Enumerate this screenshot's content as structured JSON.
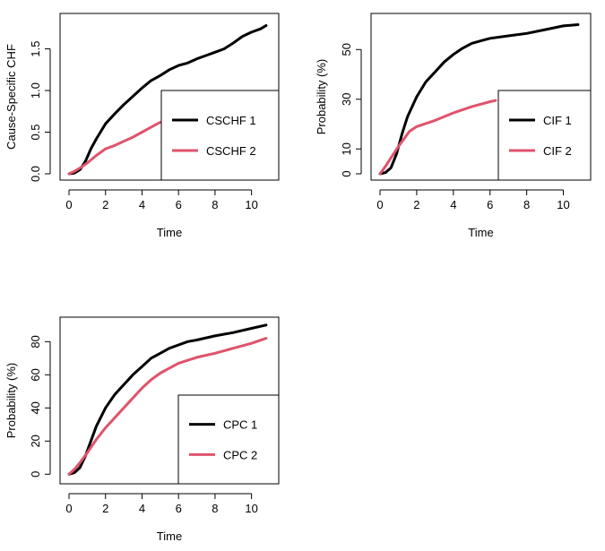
{
  "chart_data": [
    {
      "type": "line",
      "xlabel": "Time",
      "ylabel": "Cause-Specific CHF",
      "xlim": [
        0,
        11
      ],
      "ylim": [
        0,
        1.85
      ],
      "xticks": [
        0,
        2,
        4,
        6,
        8,
        10
      ],
      "yticks": [
        0.0,
        0.5,
        1.0,
        1.5
      ],
      "ytick_labels": [
        "0.0",
        "0.5",
        "1.0",
        "1.5"
      ],
      "legend_position": "bottom-right",
      "series": [
        {
          "name": "CSCHF 1",
          "color": "#000000",
          "x": [
            0,
            0.3,
            0.6,
            0.9,
            1.2,
            1.5,
            2,
            2.5,
            3,
            3.5,
            4,
            4.5,
            5,
            5.5,
            6,
            6.5,
            7,
            7.5,
            8,
            8.5,
            9,
            9.5,
            10,
            10.5,
            10.8
          ],
          "y": [
            0,
            0.01,
            0.05,
            0.15,
            0.3,
            0.42,
            0.6,
            0.72,
            0.83,
            0.93,
            1.03,
            1.12,
            1.18,
            1.25,
            1.3,
            1.33,
            1.38,
            1.42,
            1.46,
            1.5,
            1.57,
            1.65,
            1.7,
            1.74,
            1.78
          ]
        },
        {
          "name": "CSCHF 2",
          "color": "#DF536B",
          "x": [
            0,
            0.3,
            0.6,
            1,
            1.5,
            2,
            2.5,
            3,
            3.5,
            4,
            4.5,
            5
          ],
          "y": [
            0,
            0.03,
            0.07,
            0.13,
            0.22,
            0.3,
            0.34,
            0.39,
            0.44,
            0.5,
            0.56,
            0.62
          ]
        }
      ]
    },
    {
      "type": "line",
      "xlabel": "Time",
      "ylabel": "Probability (%)",
      "xlim": [
        0,
        11
      ],
      "ylim": [
        0,
        62
      ],
      "xticks": [
        0,
        2,
        4,
        6,
        8,
        10
      ],
      "yticks": [
        0,
        10,
        30,
        50
      ],
      "ytick_labels": [
        "0",
        "10",
        "30",
        "50"
      ],
      "legend_position": "bottom-right",
      "series": [
        {
          "name": "CIF 1",
          "color": "#000000",
          "x": [
            0,
            0.3,
            0.6,
            0.9,
            1.2,
            1.5,
            2,
            2.5,
            3,
            3.5,
            4,
            4.5,
            5,
            5.5,
            6,
            7,
            8,
            9,
            10,
            10.8
          ],
          "y": [
            0,
            0.5,
            2.5,
            8,
            16,
            23,
            31,
            37,
            41,
            45,
            48,
            50.5,
            52.5,
            53.5,
            54.5,
            55.5,
            56.5,
            58,
            59.5,
            60
          ]
        },
        {
          "name": "CIF 2",
          "color": "#DF536B",
          "x": [
            0,
            0.3,
            0.6,
            1,
            1.3,
            1.6,
            2,
            3,
            4,
            5,
            6,
            6.3
          ],
          "y": [
            0,
            3,
            6.5,
            11,
            14,
            17,
            19,
            21.5,
            24.5,
            27,
            29,
            29.5
          ]
        }
      ]
    },
    {
      "type": "line",
      "xlabel": "Time",
      "ylabel": "Probability (%)",
      "xlim": [
        0,
        11
      ],
      "ylim": [
        -2,
        91
      ],
      "xticks": [
        0,
        2,
        4,
        6,
        8,
        10
      ],
      "yticks": [
        0,
        20,
        40,
        60,
        80
      ],
      "ytick_labels": [
        "0",
        "20",
        "40",
        "60",
        "80"
      ],
      "legend_position": "bottom-right",
      "series": [
        {
          "name": "CPC 1",
          "color": "#000000",
          "x": [
            0,
            0.3,
            0.6,
            0.9,
            1.2,
            1.5,
            2,
            2.5,
            3,
            3.5,
            4,
            4.5,
            5,
            5.5,
            6,
            6.5,
            7,
            8,
            9,
            10,
            10.8
          ],
          "y": [
            0,
            1,
            4,
            11,
            20,
            29,
            40,
            48,
            54,
            60,
            65,
            70,
            73,
            76,
            78,
            80,
            81,
            83.5,
            85.5,
            88,
            90
          ]
        },
        {
          "name": "CPC 2",
          "color": "#DF536B",
          "x": [
            0,
            0.3,
            0.6,
            1,
            1.5,
            2,
            2.5,
            3,
            3.5,
            4,
            4.5,
            5,
            5.5,
            6,
            7,
            8,
            9,
            10,
            10.8
          ],
          "y": [
            0,
            3,
            7,
            13,
            21,
            28,
            34,
            40,
            46,
            52,
            57,
            61,
            64,
            67,
            70.5,
            73,
            76,
            79,
            82
          ]
        }
      ]
    }
  ]
}
